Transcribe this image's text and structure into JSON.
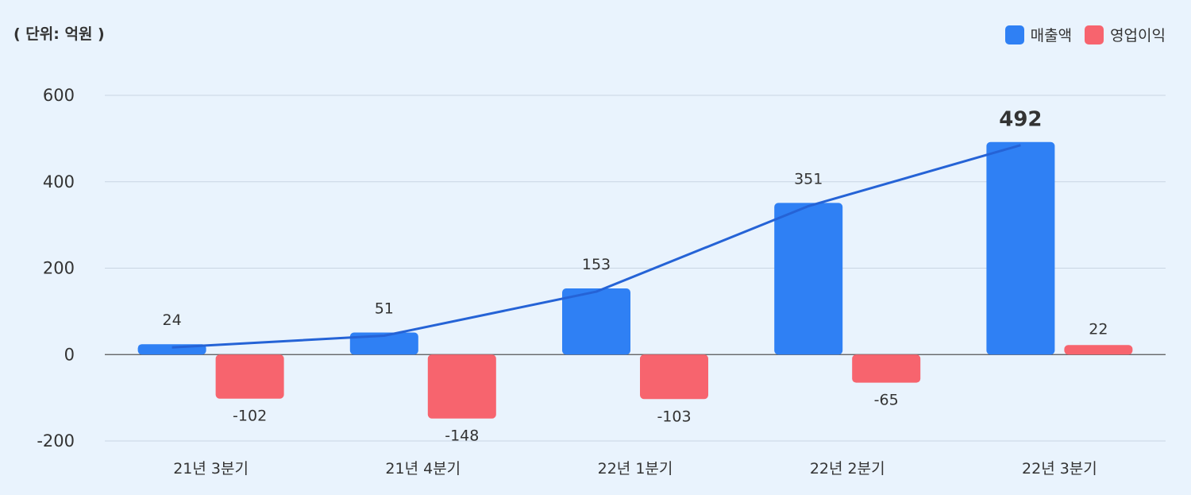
{
  "unit_label": "( 단위: 억원 )",
  "legend": [
    {
      "label": "매출액",
      "color": "#2f80f4"
    },
    {
      "label": "영업이익",
      "color": "#f7646e"
    }
  ],
  "chart_data": {
    "type": "bar",
    "categories": [
      "21년 3분기",
      "21년 4분기",
      "22년 1분기",
      "22년 2분기",
      "22년 3분기"
    ],
    "series": [
      {
        "name": "매출액",
        "color": "#2f80f4",
        "values": [
          24,
          51,
          153,
          351,
          492
        ],
        "labels": [
          "24",
          "51",
          "153",
          "351",
          "492"
        ]
      },
      {
        "name": "영업이익",
        "color": "#f7646e",
        "values": [
          -102,
          -148,
          -103,
          -65,
          22
        ],
        "labels": [
          "-102",
          "-148",
          "-103",
          "-65",
          "22"
        ]
      }
    ],
    "trend_line": {
      "series": "매출액",
      "color": "#2563d6"
    },
    "y_ticks": [
      "600",
      "400",
      "200",
      "0",
      "-200"
    ],
    "y_tick_values": [
      600,
      400,
      200,
      0,
      -200
    ],
    "ylim": [
      -200,
      600
    ],
    "grid": true,
    "legend_position": "top-right"
  }
}
